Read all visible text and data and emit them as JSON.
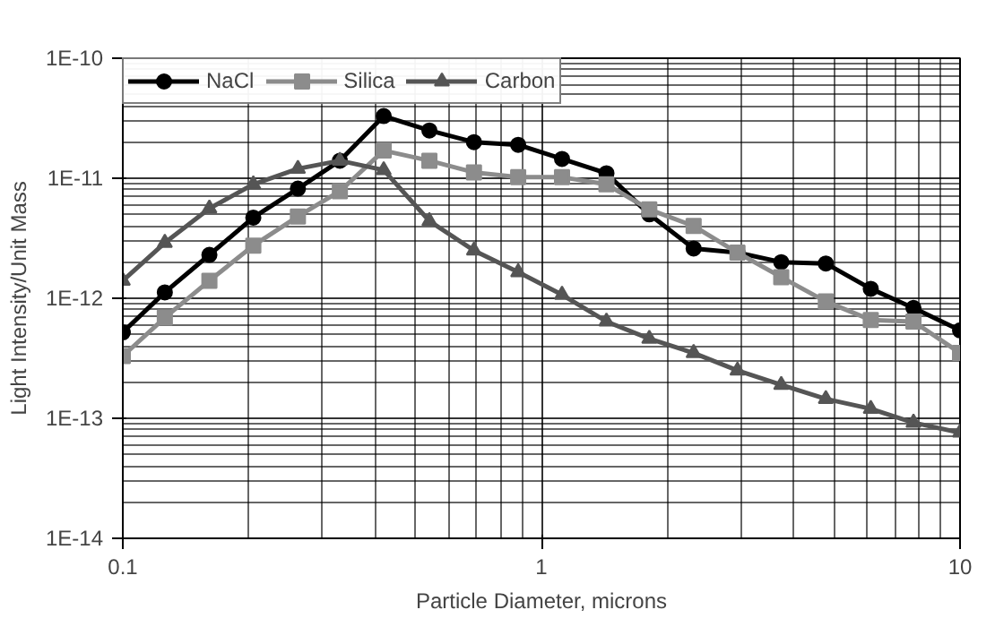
{
  "chart_data": {
    "type": "line",
    "xlabel": "Particle Diameter, microns",
    "ylabel": "Light Intensity/Unit Mass",
    "log": "xy",
    "grid": true,
    "legend": "top left",
    "line_style": "solid",
    "xlim": [
      0.1,
      10
    ],
    "xticks": [
      0.1,
      1,
      10
    ],
    "ylim": [
      1e-14,
      1e-10
    ],
    "yticks": [
      {
        "value": 1e-14,
        "label": "1E-14"
      },
      {
        "value": 1e-13,
        "label": "1E-13"
      },
      {
        "value": 1e-12,
        "label": "1E-12"
      },
      {
        "value": 1e-11,
        "label": "1E-11"
      },
      {
        "value": 1e-10,
        "label": "1E-10"
      }
    ],
    "x": [
      0.1,
      0.126,
      0.161,
      0.205,
      0.262,
      0.33,
      0.42,
      0.54,
      0.69,
      0.88,
      1.12,
      1.43,
      1.81,
      2.31,
      2.94,
      3.74,
      4.78,
      6.12,
      7.74,
      10
    ],
    "series": [
      {
        "name": "NaCl",
        "color": "#000000",
        "marker": "circle",
        "values": [
          5.2e-13,
          1.12e-12,
          2.3e-12,
          4.7e-12,
          8.2e-12,
          1.4e-11,
          3.3e-11,
          2.5e-11,
          2e-11,
          1.9e-11,
          1.45e-11,
          1.1e-11,
          5e-12,
          2.6e-12,
          2.4e-12,
          2e-12,
          1.95e-12,
          1.2e-12,
          8.3e-13,
          5.4e-13
        ]
      },
      {
        "name": "Silica",
        "color": "#8c8c8c",
        "marker": "square",
        "values": [
          3.3e-13,
          6.9e-13,
          1.4e-12,
          2.75e-12,
          4.8e-12,
          7.8e-12,
          1.7e-11,
          1.4e-11,
          1.12e-11,
          1.02e-11,
          1.02e-11,
          8.9e-12,
          5.5e-12,
          4e-12,
          2.4e-12,
          1.5e-12,
          9.4e-13,
          6.6e-13,
          6.4e-13,
          3.5e-13
        ]
      },
      {
        "name": "Carbon",
        "color": "#555555",
        "marker": "triangle",
        "values": [
          1.4e-12,
          2.9e-12,
          5.6e-12,
          8.9e-12,
          1.2e-11,
          1.4e-11,
          1.17e-11,
          4.4e-12,
          2.5e-12,
          1.65e-12,
          1.07e-12,
          6.4e-13,
          4.6e-13,
          3.5e-13,
          2.5e-13,
          1.9e-13,
          1.45e-13,
          1.2e-13,
          9.2e-14,
          7.6e-14
        ]
      }
    ]
  }
}
